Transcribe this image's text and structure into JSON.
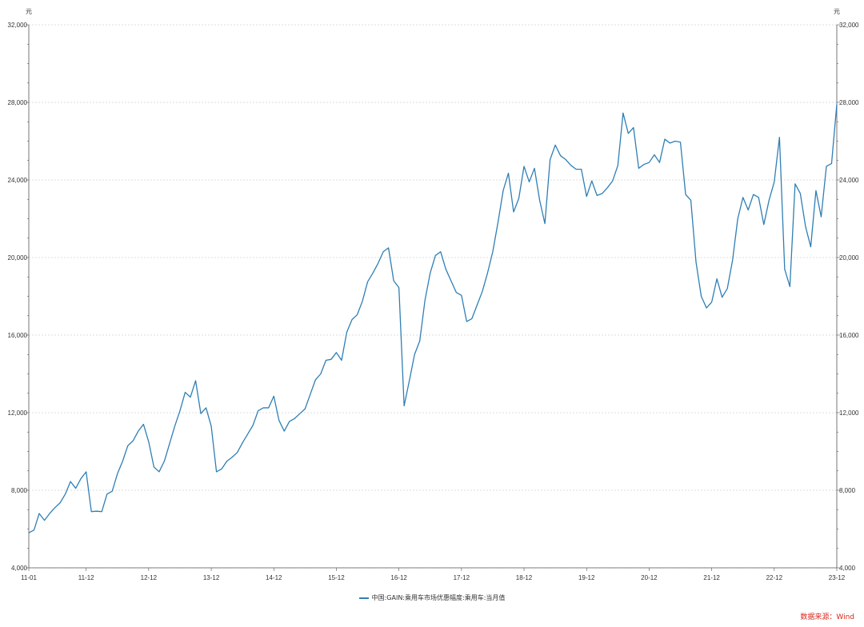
{
  "chart_data": {
    "type": "line",
    "unit_left": "元",
    "unit_right": "元",
    "ylim": [
      4000,
      32000
    ],
    "y_ticks": [
      4000,
      8000,
      12000,
      16000,
      20000,
      24000,
      28000,
      32000
    ],
    "y_tick_labels": [
      "4,000",
      "8,000",
      "12,000",
      "16,000",
      "20,000",
      "24,000",
      "28,000",
      "32,000"
    ],
    "x_tick_labels": [
      "11-01",
      "11-12",
      "12-12",
      "13-12",
      "14-12",
      "15-12",
      "16-12",
      "17-12",
      "18-12",
      "19-12",
      "20-12",
      "21-12",
      "22-12",
      "23-12"
    ],
    "grid": true,
    "legend_position": "bottom",
    "line_color": "#2f7fb5",
    "source_color": "#d9261c",
    "series": [
      {
        "name": "中国:GAIN:乘用车市场优惠幅度:乘用车:当月值",
        "start": "2011-01",
        "values": [
          5800,
          5950,
          6800,
          6450,
          6800,
          7100,
          7350,
          7800,
          8450,
          8100,
          8600,
          8950,
          6900,
          6920,
          6900,
          7800,
          7950,
          8850,
          9500,
          10300,
          10550,
          11050,
          11400,
          10500,
          9200,
          8950,
          9500,
          10400,
          11300,
          12100,
          13050,
          12800,
          13650,
          11950,
          12250,
          11300,
          8950,
          9100,
          9500,
          9700,
          9950,
          10450,
          10900,
          11350,
          12100,
          12250,
          12250,
          12850,
          11600,
          11050,
          11550,
          11700,
          11950,
          12200,
          12950,
          13700,
          14000,
          14700,
          14750,
          15100,
          14700,
          16150,
          16800,
          17050,
          17750,
          18750,
          19200,
          19700,
          20300,
          20500,
          18800,
          18450,
          12350,
          13650,
          15000,
          15700,
          17800,
          19200,
          20100,
          20300,
          19400,
          18800,
          18200,
          18050,
          16700,
          16850,
          17550,
          18250,
          19200,
          20300,
          21800,
          23450,
          24350,
          22350,
          23050,
          24700,
          23900,
          24600,
          22950,
          21750,
          25050,
          25800,
          25250,
          25050,
          24750,
          24550,
          24550,
          23150,
          23950,
          23200,
          23300,
          23600,
          23950,
          24750,
          27450,
          26400,
          26700,
          24600,
          24800,
          24900,
          25300,
          24900,
          26100,
          25900,
          26000,
          25950,
          23250,
          22950,
          19750,
          18000,
          17400,
          17700,
          18900,
          17950,
          18400,
          19850,
          22000,
          23100,
          22450,
          23250,
          23100,
          21700,
          22950,
          23900,
          26200,
          19400,
          18500,
          23800,
          23300,
          21600,
          20550,
          23450,
          22100,
          24700,
          24850,
          27900
        ]
      }
    ],
    "legend_label": "中国:GAIN:乘用车市场优惠幅度:乘用车:当月值",
    "source": "数据来源：Wind"
  }
}
